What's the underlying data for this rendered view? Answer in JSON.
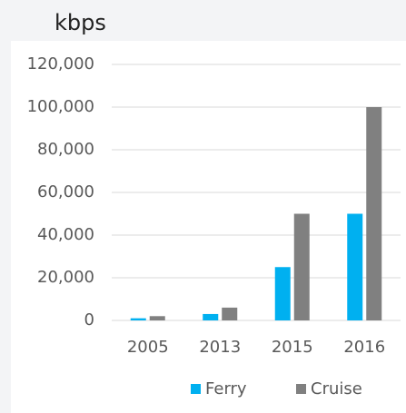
{
  "chart_data": {
    "type": "bar",
    "title": "kbps",
    "categories": [
      "2005",
      "2013",
      "2015",
      "2016"
    ],
    "series": [
      {
        "name": "Ferry",
        "color": "#00b0f0",
        "values": [
          1000,
          3000,
          25000,
          50000
        ]
      },
      {
        "name": "Cruise",
        "color": "#808080",
        "values": [
          2000,
          6000,
          50000,
          100000
        ]
      }
    ],
    "ylim": [
      0,
      120000
    ],
    "yticks": [
      0,
      {
        "value": 20000,
        "label": "20,000"
      },
      {
        "value": 40000,
        "label": "40,000"
      },
      {
        "value": 60000,
        "label": "60,000"
      },
      {
        "value": 80000,
        "label": "80,000"
      },
      {
        "value": 100000,
        "label": "100,000"
      },
      {
        "value": 120000,
        "label": "120,000"
      }
    ],
    "grid": true,
    "legend": "bottom"
  }
}
